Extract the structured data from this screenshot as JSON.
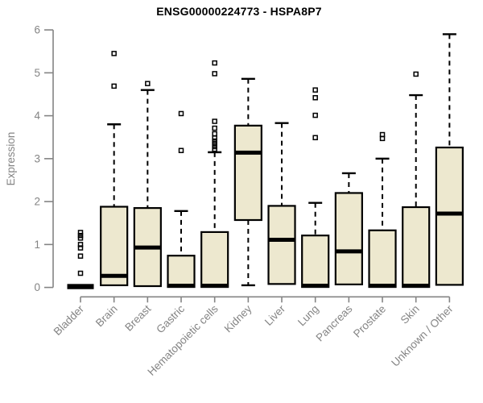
{
  "header": {
    "title": "ENSG00000224773 - HSPA8P7"
  },
  "chart_data": {
    "type": "boxplot",
    "title": "ENSG00000224773 - HSPA8P7",
    "xlabel": "",
    "ylabel": "Expression",
    "ylim": [
      0,
      6
    ],
    "yticks": [
      0,
      1,
      2,
      3,
      4,
      5,
      6
    ],
    "grid": false,
    "legend": "none",
    "categories": [
      "Bladder",
      "Brain",
      "Breast",
      "Gastric",
      "Hematopoietic cells",
      "Kidney",
      "Liver",
      "Lung",
      "Pancreas",
      "Prostate",
      "Skin",
      "Unknown / Other"
    ],
    "series": [
      {
        "name": "Bladder",
        "whisker_low": 0.0,
        "q1": 0.0,
        "median": 0.02,
        "q3": 0.05,
        "whisker_high": 0.06,
        "outliers": [
          0.33,
          0.73,
          0.92,
          1.0,
          1.15,
          1.21,
          1.28
        ]
      },
      {
        "name": "Brain",
        "whisker_low": 0.01,
        "q1": 0.05,
        "median": 0.27,
        "q3": 1.88,
        "whisker_high": 3.8,
        "outliers": [
          4.69,
          5.45
        ]
      },
      {
        "name": "Breast",
        "whisker_low": 0.01,
        "q1": 0.03,
        "median": 0.93,
        "q3": 1.85,
        "whisker_high": 4.6,
        "outliers": [
          4.75
        ]
      },
      {
        "name": "Gastric",
        "whisker_low": 0.0,
        "q1": 0.01,
        "median": 0.04,
        "q3": 0.74,
        "whisker_high": 1.78,
        "outliers": [
          3.19,
          4.05
        ]
      },
      {
        "name": "Hematopoietic cells",
        "whisker_low": 0.0,
        "q1": 0.01,
        "median": 0.04,
        "q3": 1.29,
        "whisker_high": 3.15,
        "outliers": [
          3.22,
          3.28,
          3.35,
          3.41,
          3.48,
          3.58,
          3.71,
          3.87,
          4.98,
          5.23
        ]
      },
      {
        "name": "Kidney",
        "whisker_low": 0.05,
        "q1": 1.57,
        "median": 3.14,
        "q3": 3.77,
        "whisker_high": 4.86,
        "outliers": []
      },
      {
        "name": "Liver",
        "whisker_low": 0.01,
        "q1": 0.08,
        "median": 1.11,
        "q3": 1.9,
        "whisker_high": 3.83,
        "outliers": []
      },
      {
        "name": "Lung",
        "whisker_low": 0.0,
        "q1": 0.01,
        "median": 0.04,
        "q3": 1.21,
        "whisker_high": 1.97,
        "outliers": [
          3.49,
          4.01,
          4.42,
          4.6
        ]
      },
      {
        "name": "Pancreas",
        "whisker_low": 0.01,
        "q1": 0.07,
        "median": 0.84,
        "q3": 2.2,
        "whisker_high": 2.66,
        "outliers": []
      },
      {
        "name": "Prostate",
        "whisker_low": 0.0,
        "q1": 0.01,
        "median": 0.04,
        "q3": 1.33,
        "whisker_high": 3.0,
        "outliers": [
          3.47,
          3.56
        ]
      },
      {
        "name": "Skin",
        "whisker_low": 0.0,
        "q1": 0.01,
        "median": 0.04,
        "q3": 1.87,
        "whisker_high": 4.48,
        "outliers": [
          4.97
        ]
      },
      {
        "name": "Unknown / Other",
        "whisker_low": 0.01,
        "q1": 0.06,
        "median": 1.72,
        "q3": 3.26,
        "whisker_high": 5.9,
        "outliers": []
      }
    ],
    "colors": {
      "box_fill": "#EDE8CF",
      "box_border": "#000000",
      "median": "#000000",
      "axis": "#848484",
      "title": "#000000",
      "background": "#FFFFFF"
    }
  }
}
